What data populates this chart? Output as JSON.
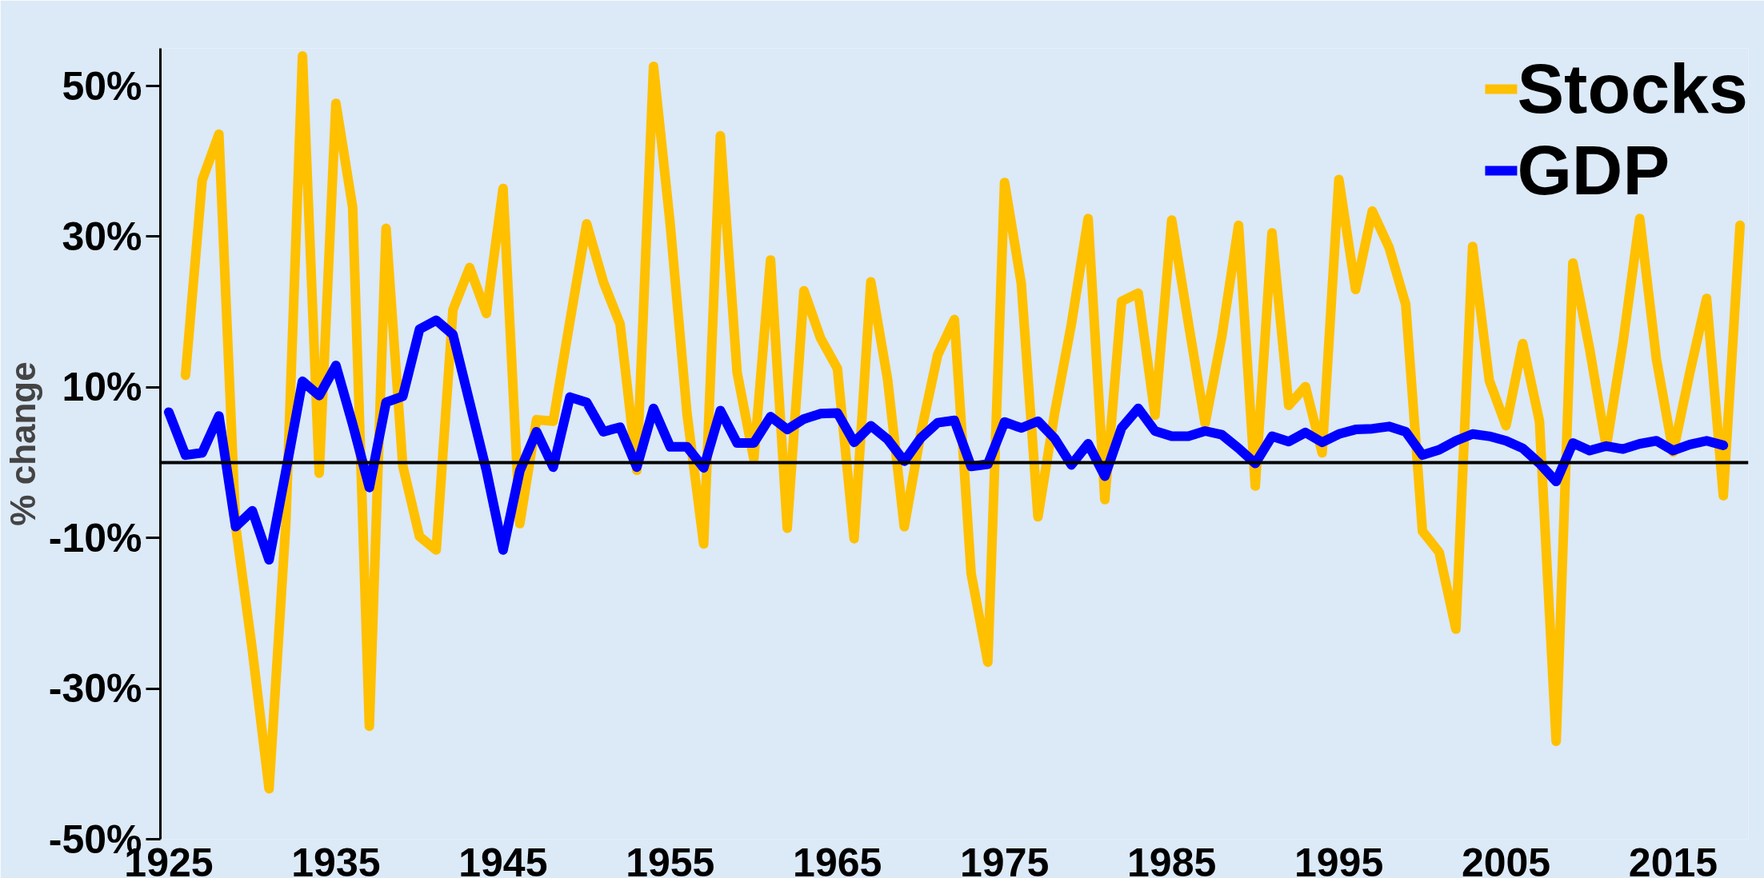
{
  "chart_data": {
    "type": "line",
    "ylabel": "% change",
    "xlim": [
      1924.5,
      2019.5
    ],
    "xticks": [
      1925,
      1935,
      1945,
      1955,
      1965,
      1975,
      1985,
      1995,
      2005,
      2015
    ],
    "ylim": [
      -50,
      55
    ],
    "yticks": [
      {
        "value": -50,
        "label": "-50%"
      },
      {
        "value": -30,
        "label": "-30%"
      },
      {
        "value": -10,
        "label": "-10%"
      },
      {
        "value": 10,
        "label": "10%"
      },
      {
        "value": 30,
        "label": "30%"
      },
      {
        "value": 50,
        "label": "50%"
      }
    ],
    "grid": false,
    "legend": "top right",
    "line_style": "solid",
    "marker": "none",
    "ref_lines": [
      {
        "axis": "y",
        "value": 0,
        "color": "#000000"
      }
    ],
    "series": [
      {
        "name": "Stocks",
        "color": "#ffc000",
        "x": [
          1926,
          1927,
          1928,
          1929,
          1930,
          1931,
          1932,
          1933,
          1934,
          1935,
          1936,
          1937,
          1938,
          1939,
          1940,
          1941,
          1942,
          1943,
          1944,
          1945,
          1946,
          1947,
          1948,
          1949,
          1950,
          1951,
          1952,
          1953,
          1954,
          1955,
          1956,
          1957,
          1958,
          1959,
          1960,
          1961,
          1962,
          1963,
          1964,
          1965,
          1966,
          1967,
          1968,
          1969,
          1970,
          1971,
          1972,
          1973,
          1974,
          1975,
          1976,
          1977,
          1978,
          1979,
          1980,
          1981,
          1982,
          1983,
          1984,
          1985,
          1986,
          1987,
          1988,
          1989,
          1990,
          1991,
          1992,
          1993,
          1994,
          1995,
          1996,
          1997,
          1998,
          1999,
          2000,
          2001,
          2002,
          2003,
          2004,
          2005,
          2006,
          2007,
          2008,
          2009,
          2010,
          2011,
          2012,
          2013,
          2014,
          2015,
          2016,
          2017,
          2018,
          2019
        ],
        "values": [
          11.6,
          37.5,
          43.6,
          -8.4,
          -24.9,
          -43.3,
          -8.2,
          54.0,
          -1.4,
          47.7,
          33.9,
          -35.0,
          31.1,
          -0.4,
          -9.8,
          -11.6,
          20.3,
          25.9,
          19.8,
          36.4,
          -8.1,
          5.7,
          5.5,
          18.8,
          31.7,
          24.0,
          18.4,
          -1.0,
          52.6,
          31.6,
          6.6,
          -10.8,
          43.4,
          12.0,
          0.5,
          26.9,
          -8.7,
          22.8,
          16.5,
          12.5,
          -10.1,
          24.0,
          11.1,
          -8.5,
          4.0,
          14.3,
          19.0,
          -14.7,
          -26.5,
          37.2,
          23.8,
          -7.2,
          6.6,
          18.4,
          32.4,
          -4.9,
          21.4,
          22.5,
          6.3,
          32.2,
          18.5,
          5.2,
          16.8,
          31.5,
          -3.1,
          30.5,
          7.6,
          10.1,
          1.3,
          37.6,
          23.0,
          33.4,
          28.6,
          21.0,
          -9.1,
          -11.9,
          -22.1,
          28.7,
          10.9,
          4.9,
          15.8,
          5.5,
          -37.0,
          26.5,
          15.1,
          2.1,
          16.0,
          32.4,
          13.7,
          1.4,
          12.0,
          21.8,
          -4.4,
          31.5
        ]
      },
      {
        "name": "GDP",
        "color": "#0000ff",
        "x": [
          1925,
          1926,
          1927,
          1928,
          1929,
          1930,
          1931,
          1932,
          1933,
          1934,
          1935,
          1936,
          1937,
          1938,
          1939,
          1940,
          1941,
          1942,
          1943,
          1944,
          1945,
          1946,
          1947,
          1948,
          1949,
          1950,
          1951,
          1952,
          1953,
          1954,
          1955,
          1956,
          1957,
          1958,
          1959,
          1960,
          1961,
          1962,
          1963,
          1964,
          1965,
          1966,
          1967,
          1968,
          1969,
          1970,
          1971,
          1972,
          1973,
          1974,
          1975,
          1976,
          1977,
          1978,
          1979,
          1980,
          1981,
          1982,
          1983,
          1984,
          1985,
          1986,
          1987,
          1988,
          1989,
          1990,
          1991,
          1992,
          1993,
          1994,
          1995,
          1996,
          1997,
          1998,
          1999,
          2000,
          2001,
          2002,
          2003,
          2004,
          2005,
          2006,
          2007,
          2008,
          2009,
          2010,
          2011,
          2012,
          2013,
          2014,
          2015,
          2016,
          2017,
          2018
        ],
        "values": [
          6.7,
          1.0,
          1.3,
          6.2,
          -8.5,
          -6.4,
          -12.9,
          -1.2,
          10.8,
          8.9,
          12.9,
          5.1,
          -3.3,
          8.0,
          8.8,
          17.7,
          18.9,
          17.0,
          8.0,
          -1.0,
          -11.6,
          -1.1,
          4.1,
          -0.6,
          8.7,
          8.0,
          4.1,
          4.7,
          -0.6,
          7.2,
          2.1,
          2.1,
          -0.7,
          6.9,
          2.6,
          2.6,
          6.1,
          4.4,
          5.8,
          6.5,
          6.6,
          2.7,
          4.9,
          3.1,
          0.2,
          3.3,
          5.3,
          5.6,
          -0.5,
          -0.2,
          5.4,
          4.6,
          5.5,
          3.2,
          -0.3,
          2.5,
          -1.8,
          4.6,
          7.2,
          4.2,
          3.5,
          3.5,
          4.2,
          3.7,
          1.9,
          -0.1,
          3.5,
          2.8,
          4.0,
          2.7,
          3.8,
          4.4,
          4.5,
          4.8,
          4.1,
          1.0,
          1.7,
          2.9,
          3.8,
          3.5,
          2.9,
          1.9,
          -0.1,
          -2.5,
          2.6,
          1.6,
          2.2,
          1.8,
          2.5,
          2.9,
          1.6,
          2.4,
          2.9,
          2.3
        ]
      }
    ]
  }
}
